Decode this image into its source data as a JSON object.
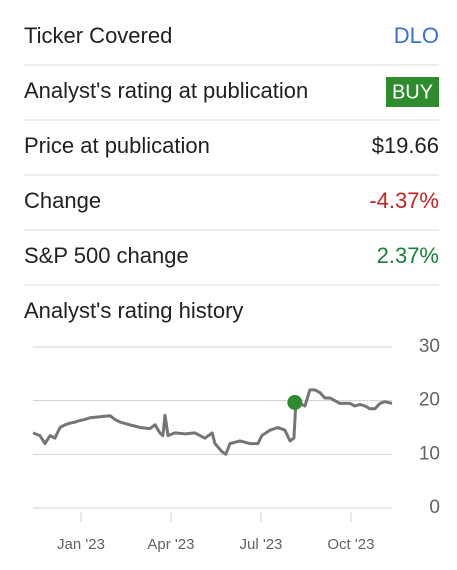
{
  "rows": [
    {
      "label": "Ticker Covered",
      "value": "DLO",
      "color": "#3b6fd0"
    },
    {
      "label": "Analyst's rating at publication",
      "value": "BUY",
      "color": "#ffffff",
      "badge": "#2e8b2e"
    },
    {
      "label": "Price at publication",
      "value": "$19.66",
      "color": "#202124"
    },
    {
      "label": "Change",
      "value": "-4.37%",
      "color": "#c5221f"
    },
    {
      "label": "S&P 500 change",
      "value": "2.37%",
      "color": "#188038"
    }
  ],
  "chart_data": {
    "type": "line",
    "title": "Analyst's rating history",
    "x": [
      -1.6,
      -1.37,
      -1.2,
      -1.03,
      -0.87,
      -0.7,
      -0.53,
      -0.37,
      -0.2,
      -0.03,
      0.13,
      0.3,
      0.63,
      0.97,
      1.13,
      1.3,
      1.63,
      1.97,
      2.3,
      2.47,
      2.63,
      2.73,
      2.8,
      2.9,
      3.13,
      3.47,
      3.8,
      4.13,
      4.37,
      4.47,
      4.7,
      4.83,
      4.97,
      5.3,
      5.63,
      5.9,
      6.03,
      6.3,
      6.57,
      6.8,
      6.97,
      7.1,
      7.17,
      7.3,
      7.47,
      7.63,
      7.8,
      7.97,
      8.13,
      8.3,
      8.47,
      8.63,
      8.8,
      8.97,
      9.13,
      9.3,
      9.47,
      9.63,
      9.8,
      9.97,
      10.13,
      10.37
    ],
    "series": [
      {
        "color": "#757575",
        "values": [
          14,
          13.5,
          12,
          13.5,
          13,
          15,
          15.5,
          15.8,
          16,
          16.3,
          16.5,
          16.8,
          17,
          17.2,
          16.5,
          16,
          15.5,
          15,
          14.8,
          15.5,
          14,
          13.5,
          17.3,
          13.5,
          14,
          13.8,
          14,
          13,
          14,
          12,
          10.5,
          10,
          12,
          12.5,
          12,
          12,
          13.5,
          14.5,
          15,
          14.5,
          12.5,
          13,
          20,
          19.5,
          19,
          22,
          22,
          21.5,
          20.5,
          20.5,
          20,
          19.5,
          19.5,
          19.5,
          19,
          19.3,
          19,
          18.5,
          18.5,
          19.5,
          19.8,
          19.5
        ]
      }
    ],
    "marker": {
      "x": 7.13,
      "y": 19.66,
      "color": "#2e8b2e"
    },
    "xlim": [
      -1.6,
      10.37
    ],
    "xticks": [
      {
        "value": 0,
        "label": "Jan '23"
      },
      {
        "value": 3,
        "label": "Apr '23"
      },
      {
        "value": 6,
        "label": "Jul '23"
      },
      {
        "value": 9,
        "label": "Oct '23"
      }
    ],
    "ylim": [
      0,
      30
    ],
    "yticks": [
      0,
      10,
      20,
      30
    ],
    "grid": true
  }
}
